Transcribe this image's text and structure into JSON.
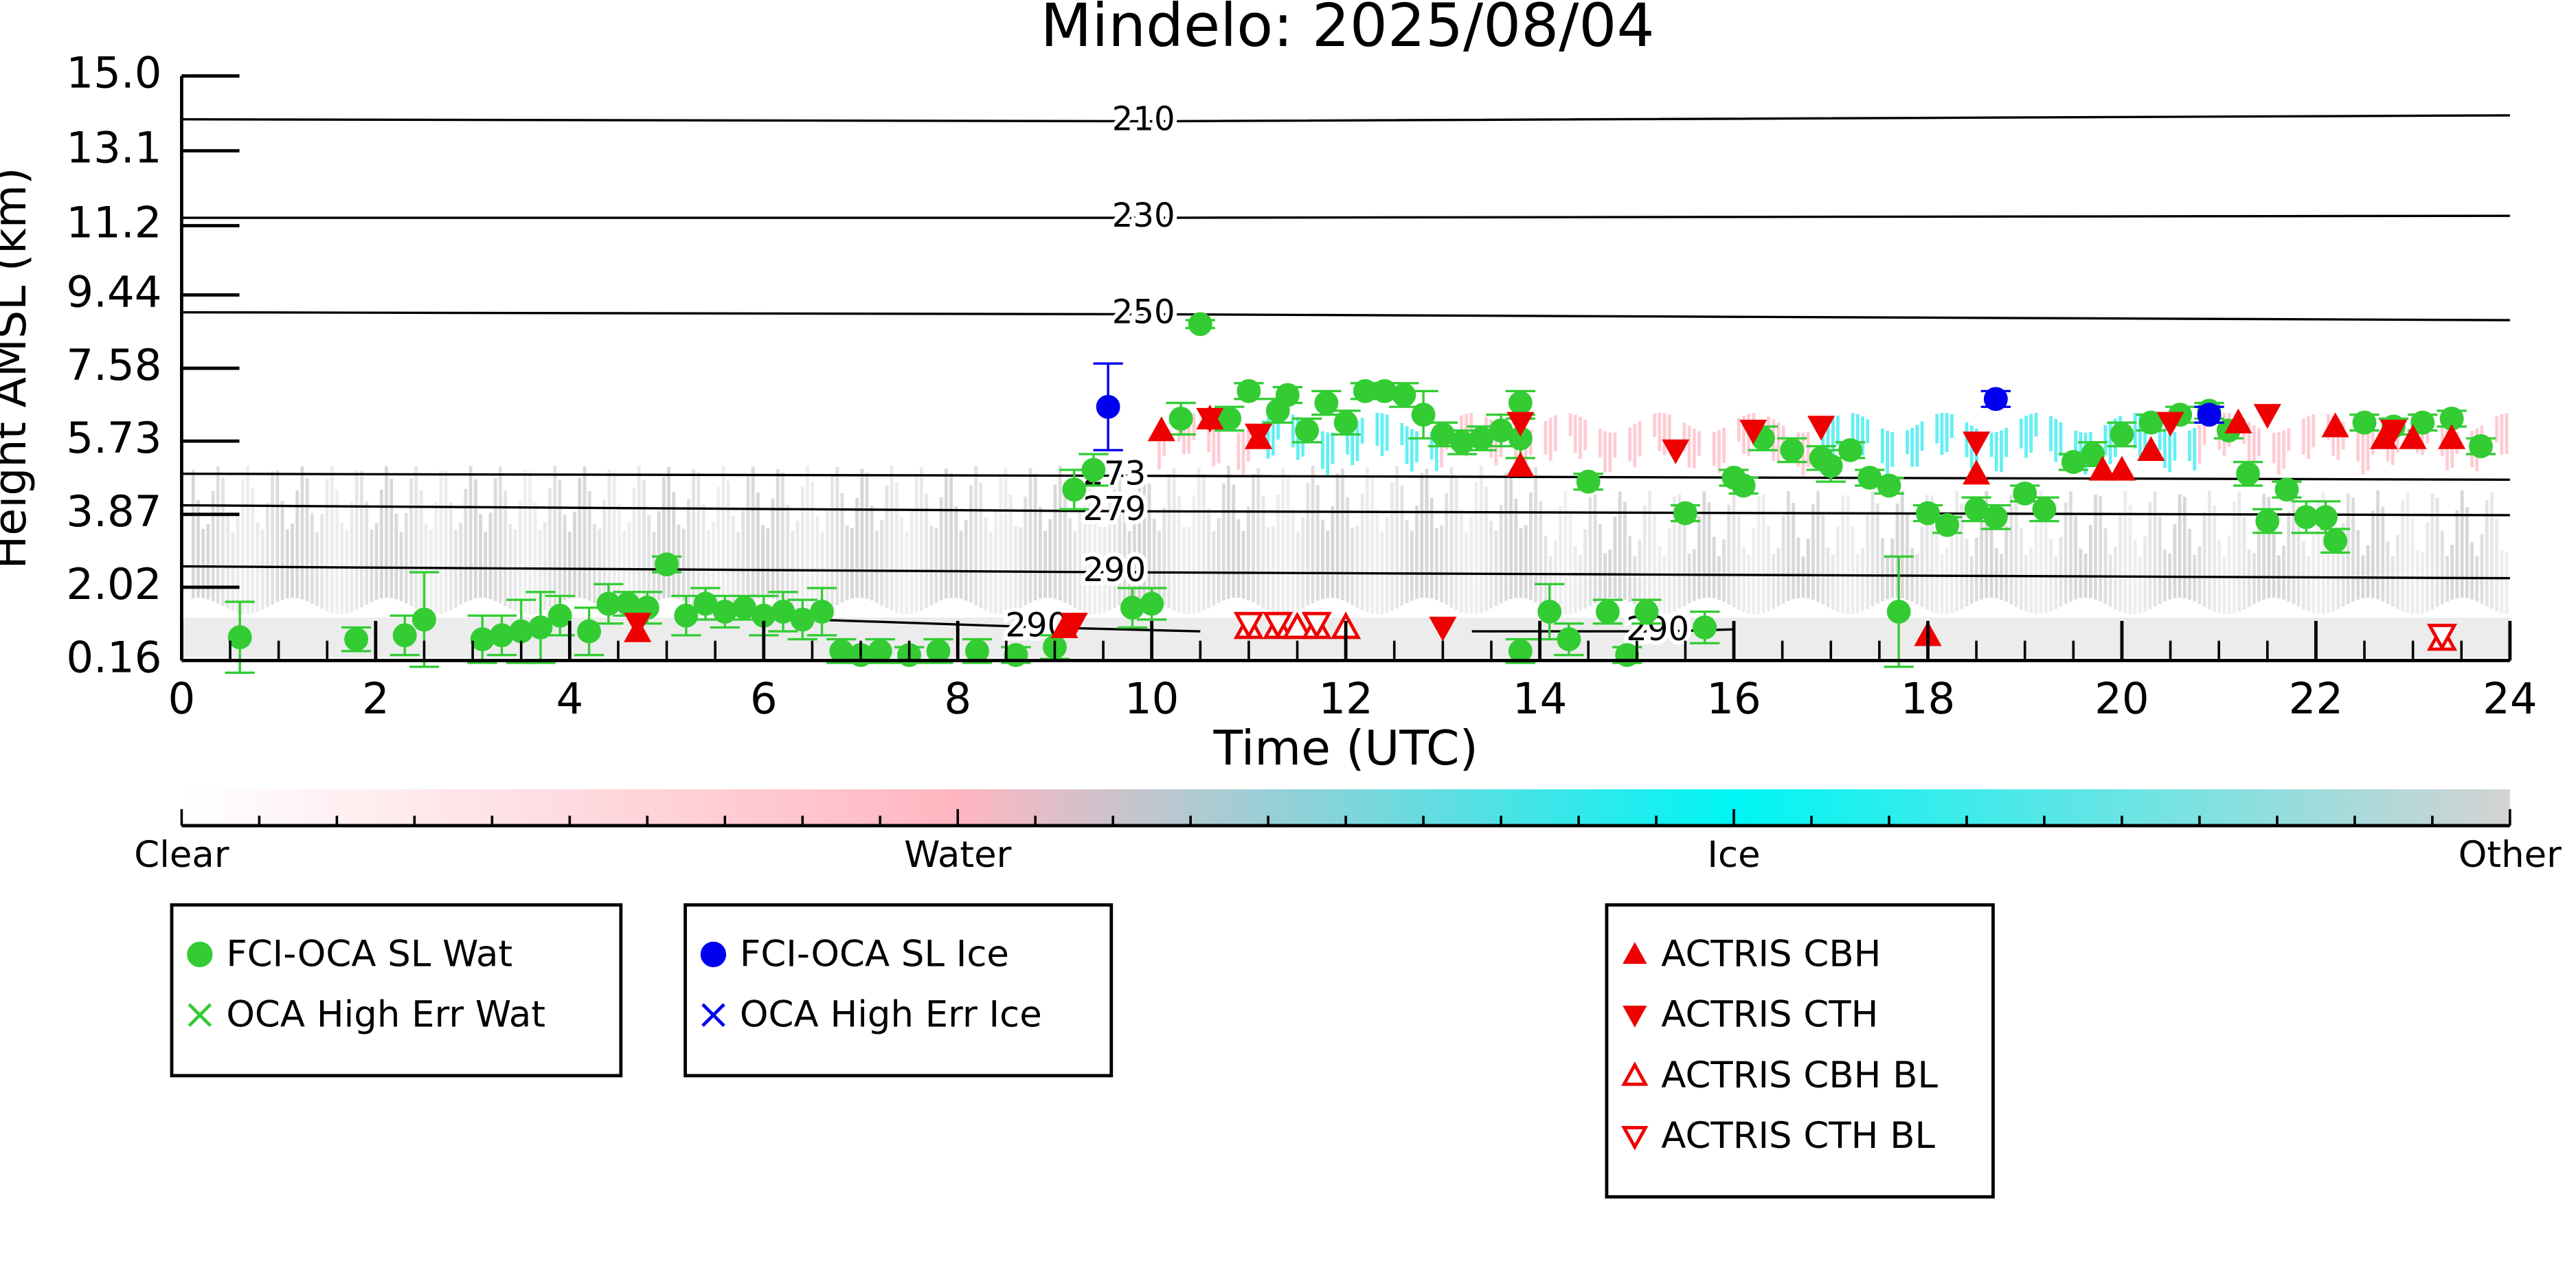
{
  "chart_data": {
    "type": "scatter",
    "title": "Mindelo: 2025/08/04",
    "xlabel": "Time (UTC)",
    "ylabel": "Height AMSL (km)",
    "xlim": [
      0,
      24
    ],
    "xticks": [
      0,
      2,
      4,
      6,
      8,
      10,
      12,
      14,
      16,
      18,
      20,
      22,
      24
    ],
    "ylim": [
      0.16,
      15.0
    ],
    "yticks": [
      0.16,
      2.02,
      3.87,
      5.73,
      7.58,
      9.44,
      11.2,
      13.1,
      {
        "value": 15.0,
        "label": "15.0"
      }
    ],
    "series": [
      {
        "name": "FCI-OCA SL Wat",
        "color": "#33cc33",
        "marker": "o",
        "filled": true,
        "x": [
          0.6,
          1.8,
          2.3,
          2.5,
          3.1,
          3.3,
          3.5,
          3.7,
          3.9,
          4.2,
          4.4,
          4.6,
          4.8,
          5.0,
          5.2,
          5.4,
          5.6,
          5.8,
          6.0,
          6.2,
          6.4,
          6.6,
          6.8,
          7.0,
          7.2,
          7.5,
          7.8,
          8.2,
          8.6,
          9.0,
          9.2,
          9.4,
          9.8,
          10.0,
          10.3,
          10.5,
          10.8,
          11.0,
          11.3,
          11.4,
          11.6,
          11.8,
          12.0,
          12.2,
          12.4,
          12.6,
          12.8,
          13.0,
          13.2,
          13.4,
          13.6,
          13.8,
          13.8,
          13.8,
          14.1,
          14.3,
          14.5,
          14.7,
          14.9,
          15.1,
          15.5,
          15.7,
          16.0,
          16.1,
          16.3,
          16.6,
          16.9,
          17.0,
          17.2,
          17.4,
          17.6,
          17.7,
          18.0,
          18.2,
          18.5,
          18.7,
          19.0,
          19.2,
          19.5,
          19.7,
          20.0,
          20.3,
          20.6,
          20.9,
          21.1,
          21.3,
          21.5,
          21.7,
          21.9,
          22.1,
          22.2,
          22.5,
          22.8,
          23.1,
          23.4,
          23.7
        ],
        "y": [
          0.75,
          0.7,
          0.8,
          1.2,
          0.7,
          0.8,
          0.9,
          1.0,
          1.3,
          0.9,
          1.6,
          1.6,
          1.5,
          2.6,
          1.3,
          1.6,
          1.4,
          1.5,
          1.3,
          1.4,
          1.2,
          1.4,
          0.4,
          0.3,
          0.4,
          0.3,
          0.4,
          0.4,
          0.3,
          0.5,
          4.5,
          5.0,
          1.5,
          1.6,
          6.3,
          8.7,
          6.3,
          7.0,
          6.5,
          6.9,
          6.0,
          6.7,
          6.2,
          7.0,
          7.0,
          6.9,
          6.4,
          5.9,
          5.7,
          5.8,
          6.0,
          6.7,
          5.8,
          0.4,
          1.4,
          0.7,
          4.7,
          1.4,
          0.3,
          1.4,
          3.9,
          1.0,
          4.8,
          4.6,
          5.8,
          5.5,
          5.3,
          5.1,
          5.5,
          4.8,
          4.6,
          1.4,
          3.9,
          3.6,
          4.0,
          3.8,
          4.4,
          4.0,
          5.2,
          5.4,
          5.9,
          6.2,
          6.4,
          6.5,
          6.0,
          4.9,
          3.7,
          4.5,
          3.8,
          3.8,
          3.2,
          6.2,
          6.1,
          6.2,
          6.3,
          5.6
        ],
        "err": [
          0.9,
          0.3,
          0.5,
          1.2,
          0.6,
          0.5,
          0.8,
          0.9,
          0.5,
          0.6,
          0.5,
          0.3,
          0.4,
          0.2,
          0.5,
          0.4,
          0.4,
          0.3,
          0.5,
          0.5,
          0.5,
          0.6,
          0.3,
          0.2,
          0.3,
          0.2,
          0.3,
          0.3,
          0.2,
          0.3,
          0.5,
          0.4,
          0.5,
          0.4,
          0.4,
          0.1,
          0.3,
          0.2,
          0.3,
          0.2,
          0.3,
          0.3,
          0.3,
          0.2,
          0.2,
          0.3,
          0.6,
          0.3,
          0.3,
          0.3,
          0.4,
          0.3,
          0.5,
          0.3,
          0.7,
          0.4,
          0.2,
          0.3,
          0.2,
          0.3,
          0.2,
          0.4,
          0.2,
          0.2,
          0.3,
          0.3,
          0.3,
          0.4,
          0.2,
          0.2,
          0.2,
          1.4,
          0.2,
          0.2,
          0.3,
          0.3,
          0.2,
          0.3,
          0.2,
          0.3,
          0.3,
          0.2,
          0.2,
          0.2,
          0.2,
          0.3,
          0.3,
          0.2,
          0.4,
          0.4,
          0.3,
          0.2,
          0.2,
          0.2,
          0.2,
          0.2
        ]
      },
      {
        "name": "OCA High Err Wat",
        "color": "#33cc33",
        "marker": "x",
        "filled": true,
        "x": [],
        "y": [],
        "err": []
      },
      {
        "name": "FCI-OCA SL Ice",
        "color": "#0000ee",
        "marker": "o",
        "filled": true,
        "x": [
          9.55,
          18.7,
          20.9
        ],
        "y": [
          6.6,
          6.8,
          6.4
        ],
        "err": [
          1.1,
          0.2,
          0.2
        ]
      },
      {
        "name": "OCA High Err Ice",
        "color": "#0000ee",
        "marker": "x",
        "filled": true,
        "x": [],
        "y": [],
        "err": []
      },
      {
        "name": "ACTRIS CBH",
        "color": "#ee0000",
        "marker": "^",
        "filled": true,
        "x": [
          4.7,
          9.1,
          10.1,
          10.6,
          11.1,
          13.8,
          18.0,
          18.5,
          19.8,
          20.0,
          20.3,
          21.2,
          22.2,
          22.7,
          23.0,
          23.4
        ],
        "y": [
          0.9,
          1.0,
          6.0,
          6.3,
          5.8,
          5.1,
          0.8,
          4.9,
          5.0,
          5.0,
          5.5,
          6.2,
          6.1,
          5.8,
          5.8,
          5.8
        ]
      },
      {
        "name": "ACTRIS CTH",
        "color": "#ee0000",
        "marker": "v",
        "filled": true,
        "x": [
          4.7,
          9.2,
          10.6,
          11.1,
          13.0,
          13.8,
          15.4,
          16.2,
          16.9,
          18.5,
          20.5,
          21.5,
          22.8
        ],
        "y": [
          1.1,
          1.1,
          6.3,
          5.9,
          1.0,
          6.2,
          5.5,
          6.0,
          6.1,
          5.7,
          6.2,
          6.4,
          6.0
        ]
      },
      {
        "name": "ACTRIS CBH BL",
        "color": "#ee0000",
        "marker": "^",
        "filled": false,
        "x": [
          11.0,
          11.3,
          11.5,
          11.7,
          12.0,
          23.3
        ],
        "y": [
          1.0,
          1.0,
          1.0,
          1.0,
          1.0,
          0.7
        ]
      },
      {
        "name": "ACTRIS CTH BL",
        "color": "#ee0000",
        "marker": "v",
        "filled": false,
        "x": [
          11.0,
          11.3,
          11.7,
          23.3
        ],
        "y": [
          1.1,
          1.1,
          1.1,
          0.8
        ]
      }
    ],
    "contours": [
      {
        "label": "210",
        "x": [
          0,
          10,
          24
        ],
        "y": [
          13.9,
          13.85,
          14.0
        ]
      },
      {
        "label": "230",
        "x": [
          0,
          10,
          24
        ],
        "y": [
          11.4,
          11.4,
          11.45
        ]
      },
      {
        "label": "250",
        "x": [
          0,
          10,
          24
        ],
        "y": [
          9.0,
          8.95,
          8.8
        ]
      },
      {
        "label": "273",
        "x": [
          0,
          9.7,
          24
        ],
        "y": [
          4.9,
          4.85,
          4.75
        ]
      },
      {
        "label": "279",
        "x": [
          0,
          9.7,
          24
        ],
        "y": [
          4.1,
          3.95,
          3.85
        ]
      },
      {
        "label": "290",
        "x": [
          0,
          9.7,
          24
        ],
        "y": [
          2.55,
          2.4,
          2.25
        ]
      },
      {
        "label": "290",
        "x": [
          6.5,
          8.9,
          10.5
        ],
        "y": [
          1.2,
          1.0,
          0.9
        ]
      },
      {
        "label": "290",
        "x": [
          13.3,
          15.3,
          16.0
        ],
        "y": [
          0.9,
          0.9,
          0.95
        ]
      }
    ],
    "colorbar": {
      "labels": [
        "Clear",
        "Water",
        "Ice",
        "Other"
      ],
      "colors": [
        "#ffffff",
        "#ffb6c1",
        "#00f5f5",
        "#d3d3d3"
      ]
    }
  }
}
